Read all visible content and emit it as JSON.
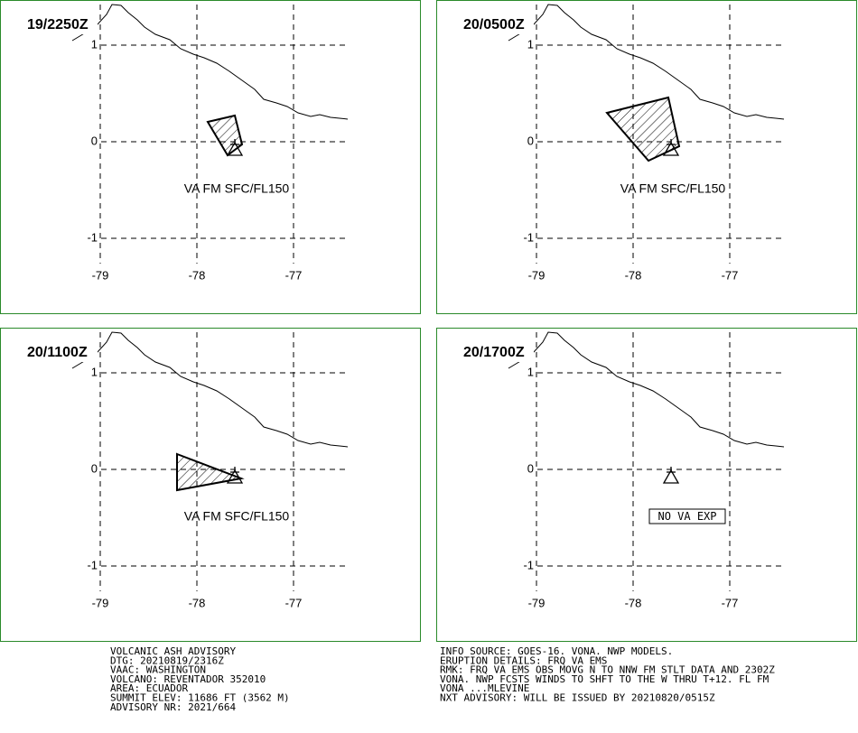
{
  "panels": [
    {
      "time": "19/2250Z",
      "annotation": "VA FM SFC/FL150"
    },
    {
      "time": "20/0500Z",
      "annotation": "VA FM SFC/FL150"
    },
    {
      "time": "20/1100Z",
      "annotation": "VA FM SFC/FL150"
    },
    {
      "time": "20/1700Z",
      "annotation": "NO VA EXP"
    }
  ],
  "lat_ticks": [
    1,
    0,
    -1
  ],
  "lon_ticks": [
    -79,
    -78,
    -77
  ],
  "advisory_left": [
    "VOLCANIC ASH ADVISORY",
    "DTG: 20210819/2316Z",
    "VAAC: WASHINGTON",
    "VOLCANO: REVENTADOR 352010",
    "AREA: ECUADOR",
    "SUMMIT ELEV: 11686 FT (3562 M)",
    "ADVISORY NR: 2021/664"
  ],
  "advisory_right": [
    "INFO SOURCE: GOES-16. VONA. NWP MODELS.",
    "ERUPTION DETAILS: FRQ VA EMS",
    "RMK: FRQ VA EMS OBS MOVG N TO NNW FM STLT DATA AND 2302Z",
    "VONA. NWP FCSTS WINDS TO SHFT TO THE W THRU T+12. FL FM",
    "VONA ...MLEVINE",
    "NXT ADVISORY: WILL BE ISSUED BY 20210820/0515Z"
  ]
}
